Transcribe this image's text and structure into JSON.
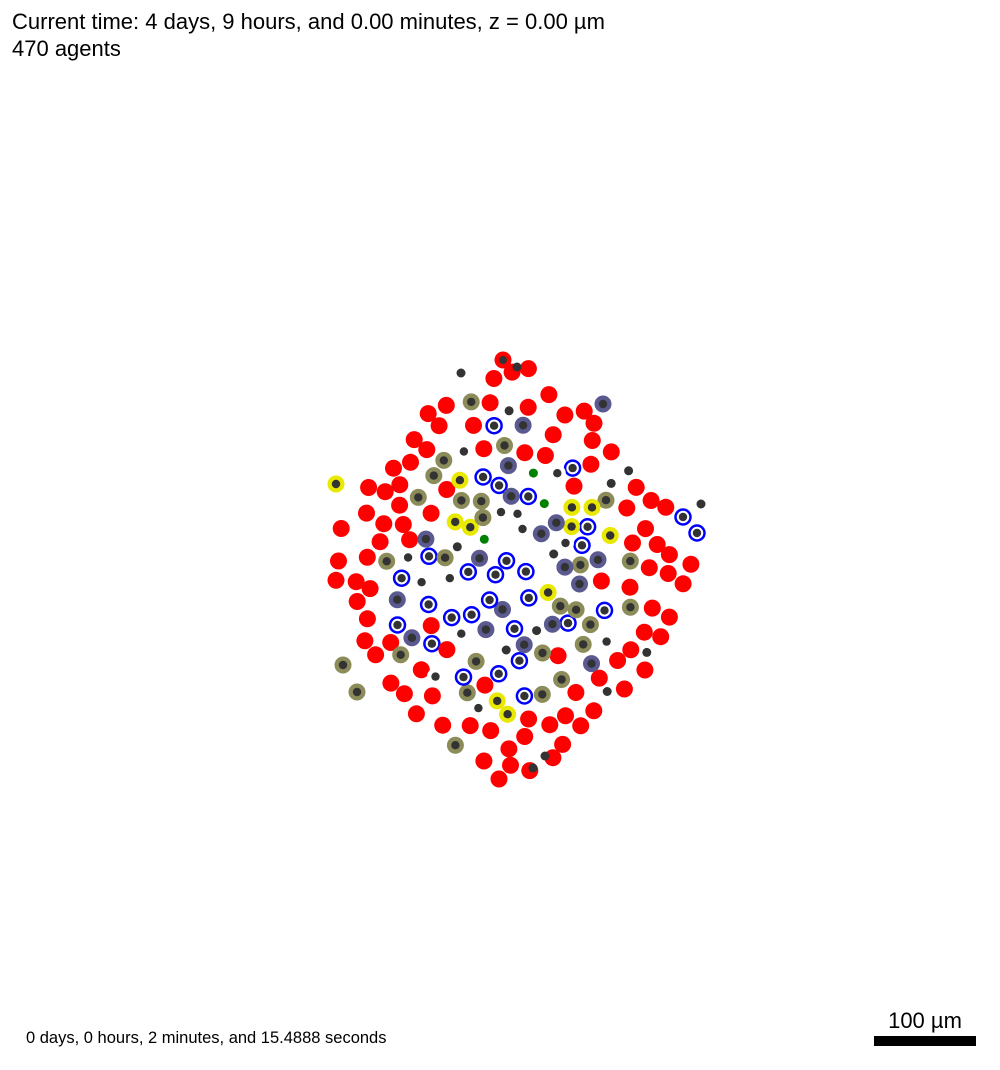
{
  "header": {
    "time_line": "Current time: 4 days, 9 hours, and 0.00 minutes, z = 0.00 µm",
    "agents_line": "470 agents"
  },
  "footer": {
    "runtime": "0 days, 0 hours, 2 minutes, and 15.4888 seconds",
    "scale_label": "100 µm"
  },
  "colors": {
    "background": "#ffffff",
    "cell_red": "#ff0000",
    "cell_blue": "#0000ff",
    "cell_slate": "#5a5a90",
    "cell_olive": "#8c8c5a",
    "cell_yellow": "#e8e800",
    "cell_white": "#ffffff",
    "cell_green": "#008000",
    "nucleus": "#333333",
    "scale_bar": "#000000"
  }
}
